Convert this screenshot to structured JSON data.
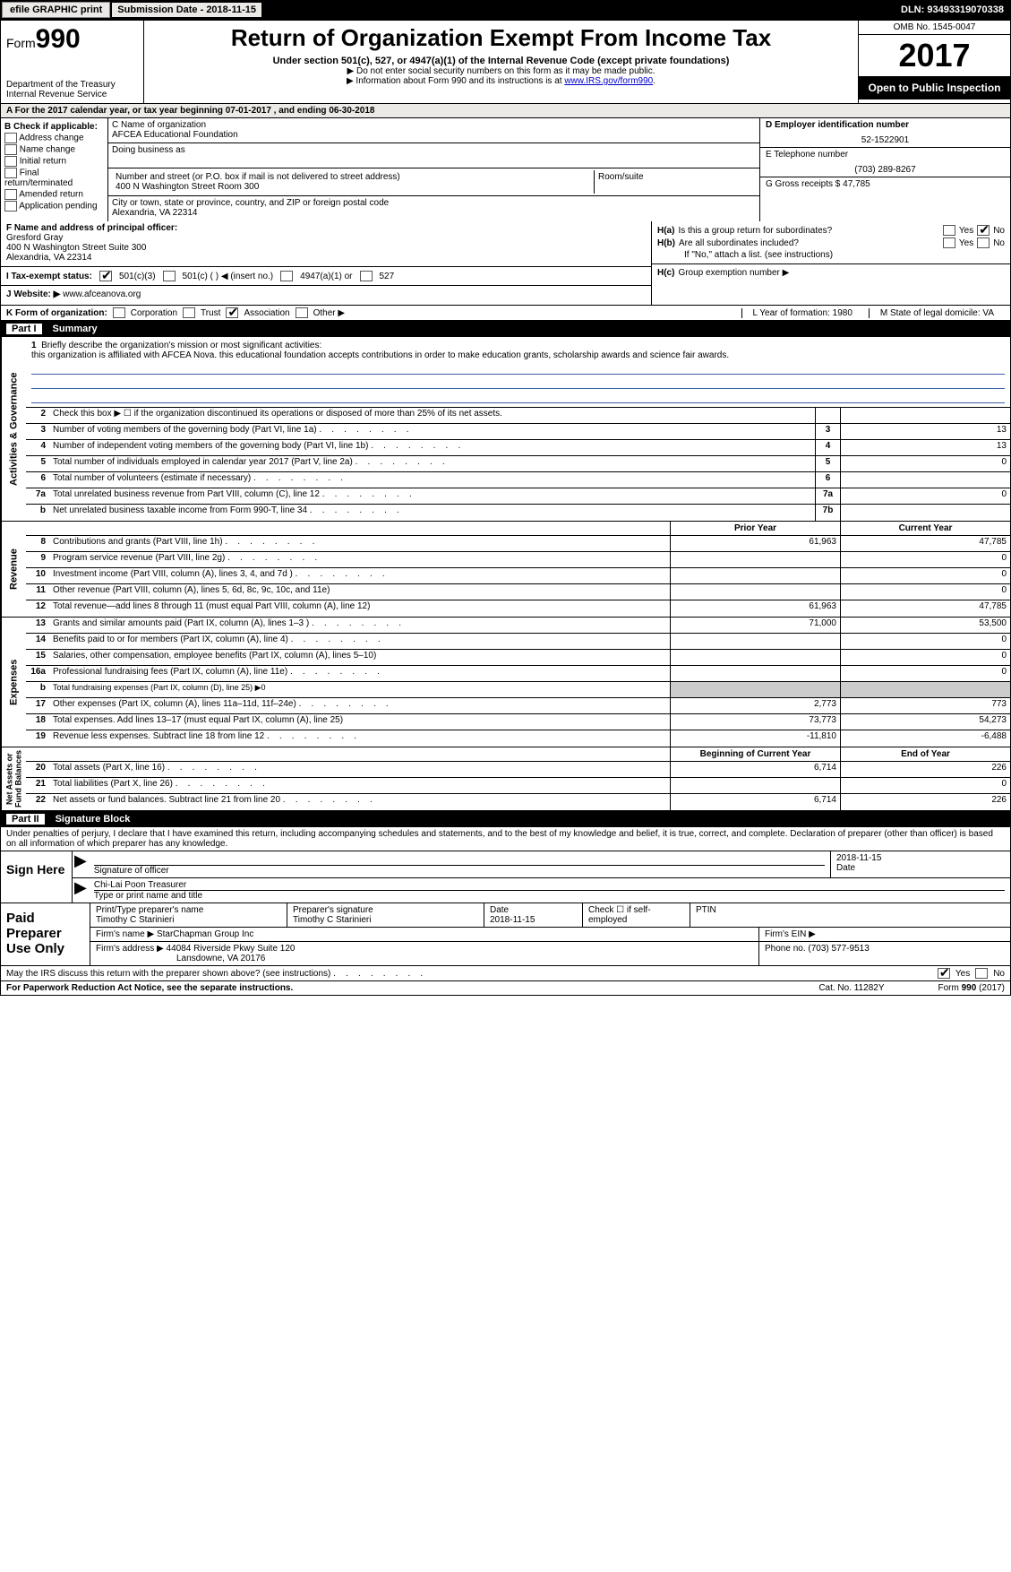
{
  "topbar": {
    "efile_btn": "efile GRAPHIC print",
    "submission_label": "Submission Date - 2018-11-15",
    "dln": "DLN: 93493319070338"
  },
  "header": {
    "form_label": "Form",
    "form_no": "990",
    "dept": "Department of the Treasury",
    "irs": "Internal Revenue Service",
    "title": "Return of Organization Exempt From Income Tax",
    "sub1": "Under section 501(c), 527, or 4947(a)(1) of the Internal Revenue Code (except private foundations)",
    "sub2a": "▶ Do not enter social security numbers on this form as it may be made public.",
    "sub2b": "▶ Information about Form 990 and its instructions is at ",
    "irs_link": "www.IRS.gov/form990",
    "omb": "OMB No. 1545-0047",
    "year": "2017",
    "open": "Open to Public Inspection"
  },
  "rowA": "A  For the 2017 calendar year, or tax year beginning 07-01-2017     , and ending 06-30-2018",
  "colB": {
    "title": "B Check if applicable:",
    "items": [
      "Address change",
      "Name change",
      "Initial return",
      "Final return/terminated",
      "Amended return",
      "Application pending"
    ]
  },
  "colC": {
    "name_lbl": "C Name of organization",
    "name": "AFCEA Educational Foundation",
    "dba_lbl": "Doing business as",
    "dba": "",
    "addr_lbl": "Number and street (or P.O. box if mail is not delivered to street address)",
    "addr": "400 N Washington Street Room 300",
    "room_lbl": "Room/suite",
    "city_lbl": "City or town, state or province, country, and ZIP or foreign postal code",
    "city": "Alexandria, VA  22314"
  },
  "colD": {
    "ein_lbl": "D Employer identification number",
    "ein": "52-1522901",
    "tel_lbl": "E Telephone number",
    "tel": "(703) 289-8267",
    "g_lbl": "G Gross receipts $ 47,785"
  },
  "rowF": {
    "f_lbl": "F  Name and address of principal officer:",
    "f_name": "Gresford Gray",
    "f_addr1": "400 N Washington Street Suite 300",
    "f_addr2": "Alexandria, VA  22314",
    "ha_lbl": "H(a)",
    "ha_txt": "Is this a group return for subordinates?",
    "hb_lbl": "H(b)",
    "hb_txt": "Are all subordinates included?",
    "hb_note": "If \"No,\" attach a list. (see instructions)",
    "hc_lbl": "H(c)",
    "hc_txt": "Group exemption number ▶",
    "yes": "Yes",
    "no": "No"
  },
  "rowI": {
    "i_lbl": "I     Tax-exempt status:",
    "c3": "501(c)(3)",
    "c": "501(c) ( ) ◀ (insert no.)",
    "a1": "4947(a)(1) or",
    "527": "527"
  },
  "rowJ": {
    "lbl": "J    Website: ▶",
    "url": "www.afceanova.org"
  },
  "rowK": {
    "lbl": "K Form of organization:",
    "corp": "Corporation",
    "trust": "Trust",
    "assoc": "Association",
    "other": "Other ▶",
    "l_lbl": "L Year of formation: 1980",
    "m_lbl": "M State of legal domicile: VA"
  },
  "part1": {
    "num": "Part I",
    "title": "Summary"
  },
  "mission": {
    "n": "1",
    "lbl": "Briefly describe the organization's mission or most significant activities:",
    "text": "this organization is affiliated with AFCEA Nova. this educational foundation accepts contributions in order to make education grants, scholarship awards and science fair awards."
  },
  "gov_rows": [
    {
      "n": "2",
      "t": "Check this box ▶ ☐ if the organization discontinued its operations or disposed of more than 25% of its net assets.",
      "b": "",
      "v": ""
    },
    {
      "n": "3",
      "t": "Number of voting members of the governing body (Part VI, line 1a)",
      "b": "3",
      "v": "13",
      "dots": true
    },
    {
      "n": "4",
      "t": "Number of independent voting members of the governing body (Part VI, line 1b)",
      "b": "4",
      "v": "13",
      "dots": true
    },
    {
      "n": "5",
      "t": "Total number of individuals employed in calendar year 2017 (Part V, line 2a)",
      "b": "5",
      "v": "0",
      "dots": true
    },
    {
      "n": "6",
      "t": "Total number of volunteers (estimate if necessary)",
      "b": "6",
      "v": "",
      "dots": true
    },
    {
      "n": "7a",
      "t": "Total unrelated business revenue from Part VIII, column (C), line 12",
      "b": "7a",
      "v": "0",
      "dots": true
    },
    {
      "n": "b",
      "t": "Net unrelated business taxable income from Form 990-T, line 34",
      "b": "7b",
      "v": "",
      "dots": true
    }
  ],
  "two_hdr": {
    "prior": "Prior Year",
    "curr": "Current Year"
  },
  "rev_rows": [
    {
      "n": "8",
      "t": "Contributions and grants (Part VIII, line 1h)",
      "p": "61,963",
      "c": "47,785",
      "dots": true
    },
    {
      "n": "9",
      "t": "Program service revenue (Part VIII, line 2g)",
      "p": "",
      "c": "0",
      "dots": true
    },
    {
      "n": "10",
      "t": "Investment income (Part VIII, column (A), lines 3, 4, and 7d )",
      "p": "",
      "c": "0",
      "dots": true
    },
    {
      "n": "11",
      "t": "Other revenue (Part VIII, column (A), lines 5, 6d, 8c, 9c, 10c, and 11e)",
      "p": "",
      "c": "0"
    },
    {
      "n": "12",
      "t": "Total revenue—add lines 8 through 11 (must equal Part VIII, column (A), line 12)",
      "p": "61,963",
      "c": "47,785"
    }
  ],
  "exp_rows": [
    {
      "n": "13",
      "t": "Grants and similar amounts paid (Part IX, column (A), lines 1–3 )",
      "p": "71,000",
      "c": "53,500",
      "dots": true
    },
    {
      "n": "14",
      "t": "Benefits paid to or for members (Part IX, column (A), line 4)",
      "p": "",
      "c": "0",
      "dots": true
    },
    {
      "n": "15",
      "t": "Salaries, other compensation, employee benefits (Part IX, column (A), lines 5–10)",
      "p": "",
      "c": "0"
    },
    {
      "n": "16a",
      "t": "Professional fundraising fees (Part IX, column (A), line 11e)",
      "p": "",
      "c": "0",
      "dots": true
    },
    {
      "n": "b",
      "t": "Total fundraising expenses (Part IX, column (D), line 25) ▶0",
      "p": "",
      "c": "",
      "shade": true,
      "small": true
    },
    {
      "n": "17",
      "t": "Other expenses (Part IX, column (A), lines 11a–11d, 11f–24e)",
      "p": "2,773",
      "c": "773",
      "dots": true
    },
    {
      "n": "18",
      "t": "Total expenses. Add lines 13–17 (must equal Part IX, column (A), line 25)",
      "p": "73,773",
      "c": "54,273"
    },
    {
      "n": "19",
      "t": "Revenue less expenses. Subtract line 18 from line 12",
      "p": "-11,810",
      "c": "-6,488",
      "dots": true
    }
  ],
  "na_hdr": {
    "beg": "Beginning of Current Year",
    "end": "End of Year"
  },
  "na_rows": [
    {
      "n": "20",
      "t": "Total assets (Part X, line 16)",
      "p": "6,714",
      "c": "226",
      "dots": true
    },
    {
      "n": "21",
      "t": "Total liabilities (Part X, line 26)",
      "p": "",
      "c": "0",
      "dots": true
    },
    {
      "n": "22",
      "t": "Net assets or fund balances. Subtract line 21 from line 20",
      "p": "6,714",
      "c": "226",
      "dots": true
    }
  ],
  "part2": {
    "num": "Part II",
    "title": "Signature Block"
  },
  "sig": {
    "decl": "Under penalties of perjury, I declare that I have examined this return, including accompanying schedules and statements, and to the best of my knowledge and belief, it is true, correct, and complete. Declaration of preparer (other than officer) is based on all information of which preparer has any knowledge.",
    "sign_here": "Sign Here",
    "sig_officer": "Signature of officer",
    "date": "2018-11-15",
    "date_lbl": "Date",
    "name": "Chi-Lai Poon Treasurer",
    "name_lbl": "Type or print name and title"
  },
  "prep": {
    "label": "Paid Preparer Use Only",
    "r1": {
      "c1_lbl": "Print/Type preparer's name",
      "c1": "Timothy C Starinieri",
      "c2_lbl": "Preparer's signature",
      "c2": "Timothy C Starinieri",
      "c3_lbl": "Date",
      "c3": "2018-11-15",
      "c4_lbl": "Check ☐ if self-employed",
      "c5_lbl": "PTIN"
    },
    "r2": {
      "lbl": "Firm's name    ▶",
      "v": "StarChapman Group Inc",
      "ein_lbl": "Firm's EIN ▶"
    },
    "r3": {
      "lbl": "Firm's address ▶",
      "v": "44084 Riverside Pkwy Suite 120",
      "ph_lbl": "Phone no. (703) 577-9513"
    },
    "r3b": "Lansdowne, VA  20176"
  },
  "discuss": {
    "t": "May the IRS discuss this return with the preparer shown above? (see instructions)",
    "yes": "Yes",
    "no": "No"
  },
  "footer": {
    "pra": "For Paperwork Reduction Act Notice, see the separate instructions.",
    "cat": "Cat. No. 11282Y",
    "form": "Form 990 (2017)"
  }
}
